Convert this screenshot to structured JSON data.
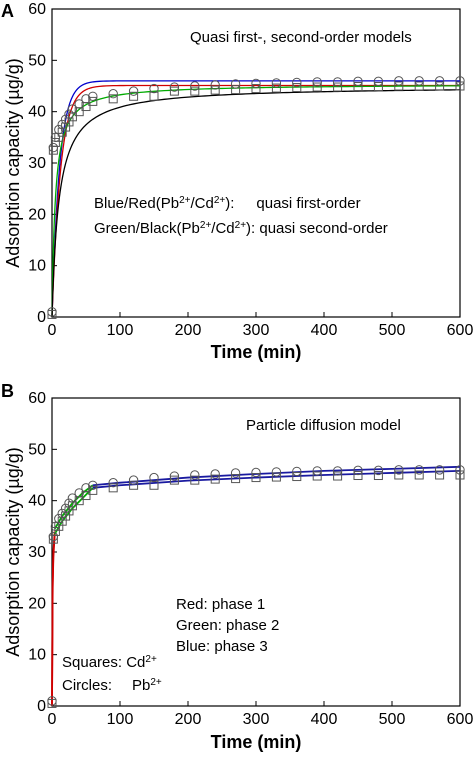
{
  "chart_data": [
    {
      "panel_label": "A",
      "type": "scatter",
      "title": "Quasi first-, second-order models",
      "xlabel": "Time (min)",
      "ylabel": "Adsorption capacity (µg/g)",
      "xlim": [
        0,
        600
      ],
      "ylim": [
        0,
        60
      ],
      "x_ticks": [
        "0",
        "100",
        "200",
        "300",
        "400",
        "500",
        "600"
      ],
      "y_ticks": [
        "0",
        "10",
        "20",
        "30",
        "40",
        "50",
        "60"
      ],
      "grid": false,
      "annotations": [
        "Blue/Red(Pb²⁺/Cd²⁺):     quasi first-order",
        "Green/Black(Pb²⁺/Cd²⁺): quasi second-order"
      ],
      "series": [
        {
          "marker": "circle",
          "x": [
            0,
            2,
            5,
            10,
            15,
            20,
            25,
            30,
            40,
            50,
            60,
            90,
            120,
            150,
            180,
            210,
            240,
            270,
            300,
            330,
            360,
            390,
            420,
            450,
            480,
            510,
            540,
            570,
            600
          ],
          "y": [
            1,
            33,
            35,
            36.5,
            37.5,
            38.5,
            39.5,
            40.5,
            41.5,
            42.5,
            43,
            43.5,
            44,
            44.5,
            44.8,
            45,
            45.2,
            45.4,
            45.5,
            45.6,
            45.7,
            45.8,
            45.8,
            45.9,
            45.9,
            46,
            46,
            46,
            46
          ]
        },
        {
          "marker": "square",
          "x": [
            0,
            2,
            5,
            10,
            15,
            20,
            25,
            30,
            40,
            50,
            60,
            90,
            120,
            150,
            180,
            210,
            240,
            270,
            300,
            330,
            360,
            390,
            420,
            450,
            480,
            510,
            540,
            570,
            600
          ],
          "y": [
            0.5,
            32.5,
            34,
            35,
            36,
            37,
            38,
            39,
            40,
            41,
            42,
            42.5,
            43,
            43,
            44,
            44,
            44.2,
            44.3,
            44.5,
            44.6,
            44.7,
            44.8,
            44.8,
            44.9,
            44.9,
            45,
            45,
            45,
            45
          ]
        },
        {
          "line": true,
          "color": "#0000cc",
          "qe": 46.0,
          "k": 0.09
        },
        {
          "line": true,
          "color": "#d00000",
          "qe": 45.1,
          "k": 0.08
        },
        {
          "line": true,
          "color": "#00aa00",
          "qe": 45.4,
          "k2": 0.0045
        },
        {
          "line": true,
          "color": "#000000",
          "qe": 45.0,
          "k2": 0.0022
        }
      ]
    },
    {
      "panel_label": "B",
      "type": "scatter",
      "title": "Particle diffusion model",
      "xlabel": "Time (min)",
      "ylabel": "Adsorption capacity (µg/g)",
      "xlim": [
        0,
        600
      ],
      "ylim": [
        0,
        60
      ],
      "x_ticks": [
        "0",
        "100",
        "200",
        "300",
        "400",
        "500",
        "600"
      ],
      "y_ticks": [
        "0",
        "10",
        "20",
        "30",
        "40",
        "50",
        "60"
      ],
      "grid": false,
      "annotations": [
        "Red:   phase 1",
        "Green: phase 2",
        "Blue:    phase 3",
        "Squares: Cd²⁺",
        "Circles:   Pb²⁺"
      ],
      "series": [
        {
          "marker": "circle",
          "x": [
            0,
            2,
            5,
            10,
            15,
            20,
            25,
            30,
            40,
            50,
            60,
            90,
            120,
            150,
            180,
            210,
            240,
            270,
            300,
            330,
            360,
            390,
            420,
            450,
            480,
            510,
            540,
            570,
            600
          ],
          "y": [
            1,
            33,
            35,
            36.5,
            37.5,
            38.5,
            39.5,
            40.5,
            41.5,
            42.5,
            43,
            43.5,
            44,
            44.5,
            44.8,
            45,
            45.2,
            45.4,
            45.5,
            45.6,
            45.7,
            45.8,
            45.8,
            45.9,
            45.9,
            46,
            46,
            46,
            46
          ]
        },
        {
          "marker": "square",
          "x": [
            0,
            2,
            5,
            10,
            15,
            20,
            25,
            30,
            40,
            50,
            60,
            90,
            120,
            150,
            180,
            210,
            240,
            270,
            300,
            330,
            360,
            390,
            420,
            450,
            480,
            510,
            540,
            570,
            600
          ],
          "y": [
            0.5,
            32.5,
            34,
            35,
            36,
            37,
            38,
            39,
            40,
            41,
            42,
            42.5,
            43,
            43,
            44,
            44,
            44.2,
            44.3,
            44.5,
            44.6,
            44.7,
            44.8,
            44.8,
            44.9,
            44.9,
            45,
            45,
            45,
            45
          ]
        },
        {
          "line": true,
          "color": "#d00000",
          "x": [
            0,
            1,
            2,
            4
          ],
          "y": [
            0,
            24,
            30,
            34
          ]
        },
        {
          "line": true,
          "color": "#d00000",
          "x": [
            0,
            1,
            2,
            4
          ],
          "y": [
            0,
            23,
            29,
            33.5
          ]
        },
        {
          "line": true,
          "color": "#00aa00",
          "x": [
            4,
            15,
            30,
            45,
            60
          ],
          "y": [
            34.5,
            37,
            39.5,
            41.5,
            43
          ]
        },
        {
          "line": true,
          "color": "#00aa00",
          "x": [
            4,
            15,
            30,
            45,
            60
          ],
          "y": [
            33.5,
            36,
            38.5,
            40.5,
            42.5
          ]
        },
        {
          "line": true,
          "color": "#1a1aa0",
          "x": [
            60,
            100,
            200,
            300,
            400,
            500,
            600
          ],
          "y": [
            43,
            43.5,
            44.5,
            45.2,
            45.8,
            46.2,
            46.6
          ]
        },
        {
          "line": true,
          "color": "#1a1aa0",
          "x": [
            60,
            100,
            200,
            300,
            400,
            500,
            600
          ],
          "y": [
            42.5,
            43,
            43.9,
            44.5,
            45,
            45.4,
            45.8
          ]
        }
      ]
    }
  ]
}
